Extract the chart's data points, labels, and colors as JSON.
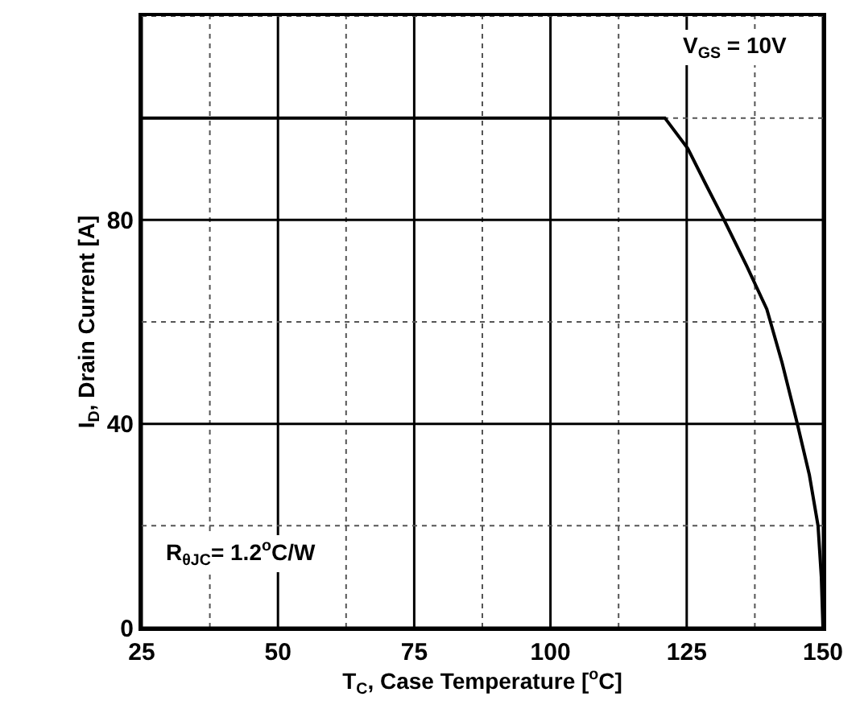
{
  "chart_data": {
    "type": "line",
    "xlabel": "T$_{C}$, Case Temperature [$^{o}$C]",
    "ylabel": "I$_{D}$, Drain Current [A]",
    "x": [
      25,
      121,
      125.2,
      128.5,
      132,
      136,
      139.7,
      142.5,
      145.3,
      147.5,
      149.1,
      149.7,
      150
    ],
    "series": [
      {
        "color": "#000000",
        "values": [
          100,
          100,
          94,
          87,
          79.7,
          71,
          62.5,
          52,
          40,
          30,
          20,
          10,
          0
        ]
      }
    ],
    "xlim": [
      25,
      150
    ],
    "ylim": [
      0,
      120
    ],
    "xticks": [
      25,
      {
        "value": 37.5,
        "label": null
      },
      50,
      {
        "value": 62.5,
        "label": null
      },
      75,
      {
        "value": 87.5,
        "label": null
      },
      100,
      {
        "value": 112.5,
        "label": null
      },
      125,
      {
        "value": 137.5,
        "label": null
      },
      150
    ],
    "yticks": [
      0,
      {
        "value": 20,
        "label": null
      },
      40,
      {
        "value": 60,
        "label": null
      },
      80,
      {
        "value": 100,
        "label": null
      },
      {
        "value": 120,
        "label": null
      }
    ],
    "grid": true,
    "marker": "none",
    "line_style": "solid",
    "annotations": [
      "V$_{GS}$ = 10V",
      "R$_{θJC}$= 1.2$^{o}$C/W"
    ]
  }
}
